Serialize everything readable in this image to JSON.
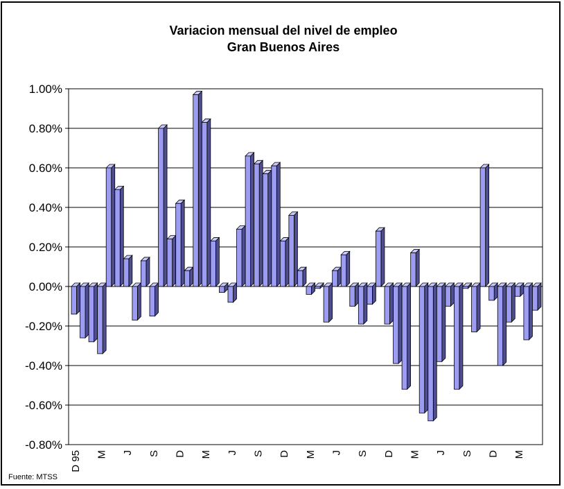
{
  "chart_data": {
    "type": "bar",
    "title": "Variacion mensual del nivel de empleo",
    "subtitle": "Gran Buenos Aires",
    "source": "Fuente: MTSS",
    "ylim": [
      -0.8,
      1.0
    ],
    "yticks": [
      1.0,
      0.8,
      0.6,
      0.4,
      0.2,
      0.0,
      -0.2,
      -0.4,
      -0.6,
      -0.8
    ],
    "ytick_labels": [
      "1.00%",
      "0.80%",
      "0.60%",
      "0.40%",
      "0.20%",
      "0.00%",
      "-0.20%",
      "-0.40%",
      "-0.60%",
      "-0.80%"
    ],
    "grid": true,
    "xtick_labels": [
      {
        "index": 0,
        "label": "D 95"
      },
      {
        "index": 3,
        "label": "M"
      },
      {
        "index": 6,
        "label": "J"
      },
      {
        "index": 9,
        "label": "S"
      },
      {
        "index": 12,
        "label": "D"
      },
      {
        "index": 15,
        "label": "M"
      },
      {
        "index": 18,
        "label": "J"
      },
      {
        "index": 21,
        "label": "S"
      },
      {
        "index": 24,
        "label": "D"
      },
      {
        "index": 27,
        "label": "M"
      },
      {
        "index": 30,
        "label": "J"
      },
      {
        "index": 33,
        "label": "S"
      },
      {
        "index": 36,
        "label": "D"
      },
      {
        "index": 39,
        "label": "M"
      },
      {
        "index": 42,
        "label": "J"
      },
      {
        "index": 45,
        "label": "S"
      },
      {
        "index": 48,
        "label": "D"
      },
      {
        "index": 51,
        "label": "M"
      }
    ],
    "values": [
      -0.14,
      -0.26,
      -0.28,
      -0.34,
      0.6,
      0.49,
      0.14,
      -0.17,
      0.13,
      -0.15,
      0.8,
      0.24,
      0.42,
      0.08,
      0.97,
      0.83,
      0.23,
      -0.03,
      -0.08,
      0.29,
      0.66,
      0.62,
      0.57,
      0.61,
      0.23,
      0.36,
      0.08,
      -0.04,
      -0.01,
      -0.18,
      0.08,
      0.16,
      -0.1,
      -0.19,
      -0.09,
      0.28,
      -0.19,
      -0.39,
      -0.52,
      0.17,
      -0.64,
      -0.68,
      -0.38,
      -0.1,
      -0.52,
      -0.01,
      -0.23,
      0.6,
      -0.07,
      -0.4,
      -0.18,
      -0.05,
      -0.27,
      -0.12
    ],
    "colors": {
      "front": "#9c9cf2",
      "side": "#4e4e90",
      "top": "#c8c8ff",
      "outline": "#000000"
    }
  }
}
